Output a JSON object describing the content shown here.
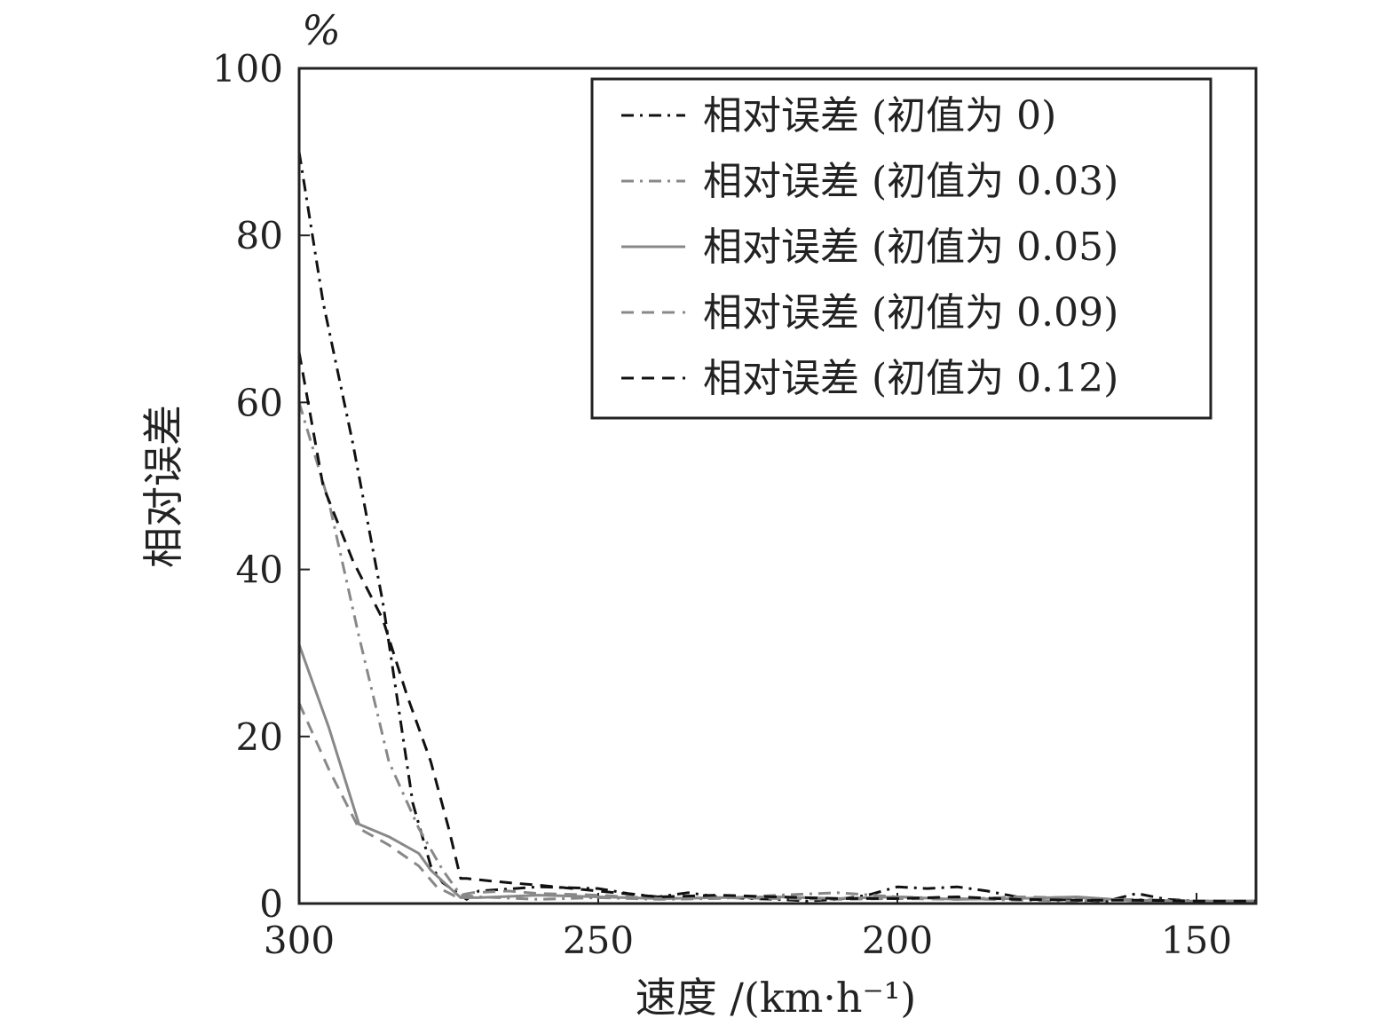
{
  "chart_data": {
    "type": "line",
    "title": "",
    "xlabel": "速度 /(km·h⁻¹)",
    "ylabel": "相对误差",
    "yunit": "%",
    "xlim": [
      300,
      140
    ],
    "ylim": [
      0,
      100
    ],
    "x_reversed": true,
    "xticks": [
      300,
      250,
      200,
      150
    ],
    "yticks": [
      0,
      20,
      40,
      60,
      80,
      100
    ],
    "grid": false,
    "legend_position": "top-right",
    "series": [
      {
        "name": "相对误差 (初值为 0)",
        "color": "#111111",
        "dash": "dashdot",
        "x": [
          300,
          296,
          291,
          286,
          281,
          278,
          276,
          272,
          270,
          260,
          250,
          245,
          240,
          235,
          230,
          225,
          220,
          215,
          210,
          205,
          200,
          195,
          190,
          185,
          180,
          175,
          170,
          165,
          160,
          155,
          150,
          145,
          140
        ],
        "y": [
          90,
          72,
          55,
          36,
          12,
          4.5,
          2.5,
          0.5,
          1.5,
          2.0,
          1.8,
          1.2,
          0.8,
          1.3,
          0.8,
          0.6,
          0.5,
          0.3,
          0.5,
          1.0,
          2.0,
          1.8,
          2.0,
          1.5,
          0.8,
          0.5,
          0.4,
          0.3,
          1.2,
          0.5,
          0.3,
          0.3,
          0.3
        ]
      },
      {
        "name": "相对误差 (初值为 0.03)",
        "color": "#888888",
        "dash": "dashdot",
        "x": [
          300,
          295,
          290,
          285,
          280,
          276,
          273,
          270,
          260,
          250,
          240,
          230,
          220,
          210,
          200,
          190,
          180,
          170,
          160,
          150,
          140
        ],
        "y": [
          60,
          48,
          32,
          17,
          9,
          4,
          1,
          0.8,
          0.5,
          0.7,
          0.5,
          0.6,
          1.0,
          1.3,
          0.8,
          0.6,
          0.4,
          0.3,
          0.5,
          0.3,
          0.3
        ]
      },
      {
        "name": "相对误差 (初值为 0.05)",
        "color": "#888888",
        "dash": "solid",
        "x": [
          300,
          295,
          290,
          285,
          280,
          278,
          275,
          273,
          270,
          260,
          250,
          240,
          230,
          220,
          210,
          200,
          190,
          180,
          170,
          160,
          150,
          140
        ],
        "y": [
          31,
          21,
          9.5,
          8,
          6,
          4,
          2,
          0.7,
          0.7,
          1.0,
          0.8,
          0.6,
          0.7,
          0.8,
          0.6,
          0.8,
          0.5,
          0.6,
          0.8,
          0.3,
          0.3,
          0.3
        ]
      },
      {
        "name": "相对误差 (初值为 0.09)",
        "color": "#888888",
        "dash": "dashed",
        "x": [
          300,
          295,
          290,
          285,
          280,
          277,
          274,
          271,
          265,
          260,
          250,
          240,
          230,
          220,
          210,
          200,
          190,
          180,
          170,
          160,
          150,
          140
        ],
        "y": [
          24,
          16,
          9,
          7,
          4.5,
          2,
          0.9,
          1.3,
          1.5,
          1.2,
          1.0,
          0.6,
          0.7,
          0.6,
          0.5,
          0.6,
          0.5,
          0.8,
          0.7,
          0.4,
          0.3,
          0.3
        ]
      },
      {
        "name": "相对误差 (初值为 0.12)",
        "color": "#111111",
        "dash": "dashed",
        "x": [
          300,
          296,
          291,
          286,
          282,
          278,
          275,
          273,
          272,
          268,
          265,
          260,
          250,
          240,
          230,
          220,
          210,
          200,
          190,
          180,
          170,
          160,
          150,
          140
        ],
        "y": [
          66,
          50,
          41,
          34,
          25,
          17,
          9,
          3,
          3,
          2.7,
          2.5,
          2.2,
          1.5,
          0.8,
          1.0,
          0.8,
          0.6,
          0.6,
          0.8,
          0.5,
          0.4,
          0.4,
          0.3,
          0.3
        ]
      }
    ]
  }
}
